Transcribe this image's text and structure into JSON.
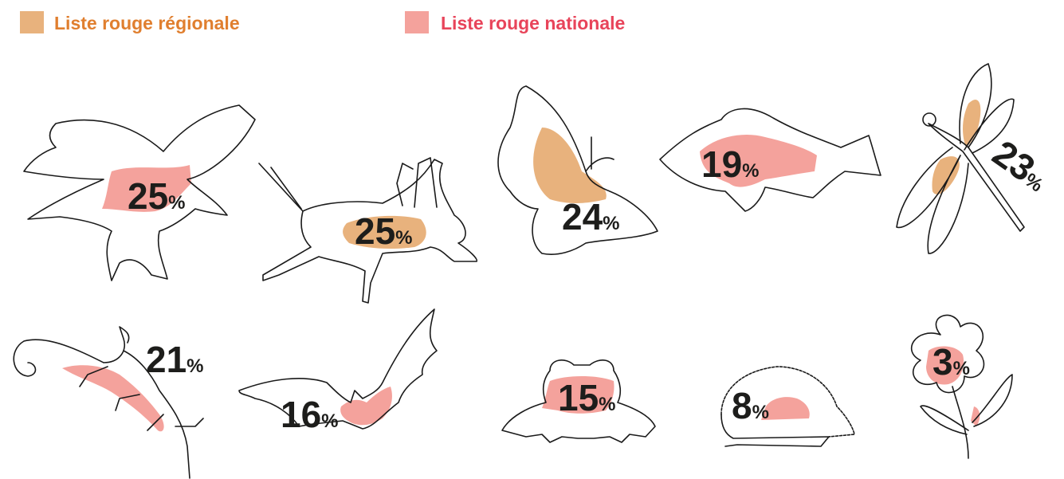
{
  "legend": [
    {
      "label": "Liste rouge régionale",
      "color": "#e8b27d",
      "text_color": "#e07f2f"
    },
    {
      "label": "Liste rouge nationale",
      "color": "#f4a29c",
      "text_color": "#e8445a"
    }
  ],
  "unit": "%",
  "items": [
    {
      "value": 25,
      "color": "#f4a29c"
    },
    {
      "value": 25,
      "color": "#e8b27d"
    },
    {
      "value": 24,
      "color": "#e8b27d"
    },
    {
      "value": 19,
      "color": "#f4a29c"
    },
    {
      "value": 23,
      "color": "#e8b27d"
    },
    {
      "value": 21,
      "color": "#f4a29c"
    },
    {
      "value": 16,
      "color": "#f4a29c"
    },
    {
      "value": 15,
      "color": "#f4a29c"
    },
    {
      "value": 8,
      "color": "#f4a29c"
    },
    {
      "value": 3,
      "color": "#f4a29c"
    }
  ]
}
